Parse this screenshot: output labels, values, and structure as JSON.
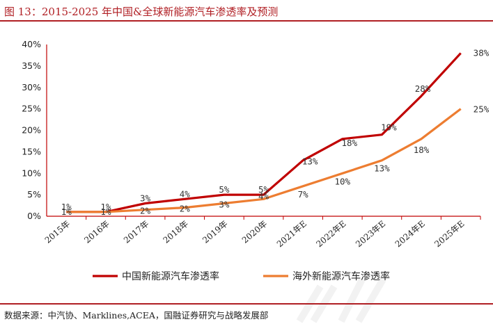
{
  "figure": {
    "title": "图 13：2015-2025 年中国&全球新能源汽车渗透率及预测",
    "source": "数据来源：中汽协、Marklines,ACEA，国融证券研究与战略发展部"
  },
  "colors": {
    "series_cn": "#c00000",
    "series_overseas": "#ed7d31",
    "title": "#b01e23"
  },
  "chart_data": {
    "type": "line",
    "title": "",
    "xlabel": "",
    "ylabel": "",
    "categories": [
      "2015年",
      "2016年",
      "2017年",
      "2018年",
      "2019年",
      "2020年",
      "2021年E",
      "2022年E",
      "2023年E",
      "2024年E",
      "2025年E"
    ],
    "y_ticks": [
      "0%",
      "5%",
      "10%",
      "15%",
      "20%",
      "25%",
      "30%",
      "35%",
      "40%"
    ],
    "ylim": [
      0,
      40
    ],
    "grid": false,
    "legend_position": "bottom",
    "series": [
      {
        "name": "中国新能源汽车渗透率",
        "color": "#c00000",
        "values": [
          1,
          1,
          3,
          4,
          5,
          5,
          13,
          18,
          19,
          28,
          38
        ],
        "labels": [
          "1%",
          "1%",
          "3%",
          "4%",
          "5%",
          "5%",
          "13%",
          "18%",
          "19%",
          "28%",
          "38%"
        ]
      },
      {
        "name": "海外新能源汽车渗透率",
        "color": "#ed7d31",
        "values": [
          1,
          1,
          1.5,
          2,
          3,
          4,
          7,
          10,
          13,
          18,
          25
        ],
        "labels": [
          "1%",
          "1%",
          "2%",
          "2%",
          "3%",
          "4%",
          "7%",
          "10%",
          "13%",
          "18%",
          "25%"
        ]
      }
    ]
  }
}
